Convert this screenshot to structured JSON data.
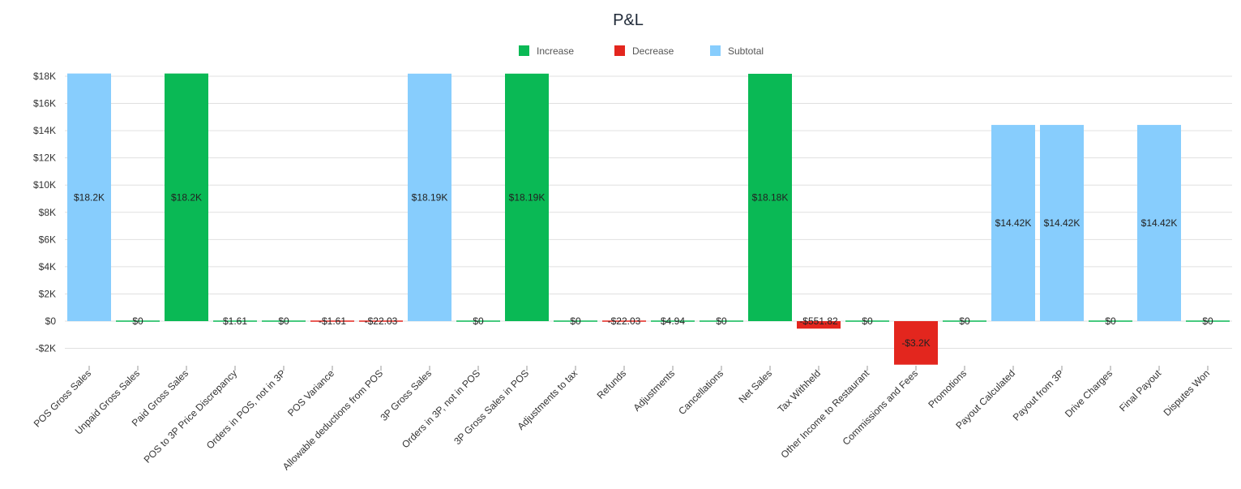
{
  "chart_data": {
    "type": "bar",
    "subtype": "waterfall",
    "title": "P&L",
    "legend": {
      "placement": "top-center",
      "items": [
        {
          "name": "Increase",
          "color": "#0ab955"
        },
        {
          "name": "Decrease",
          "color": "#e3261e"
        },
        {
          "name": "Subtotal",
          "color": "#87cdfd"
        }
      ]
    },
    "yaxis": {
      "range": [
        -3200,
        18200
      ],
      "ticks": [
        -2000,
        0,
        2000,
        4000,
        6000,
        8000,
        10000,
        12000,
        14000,
        16000,
        18000
      ],
      "tick_labels": [
        "-$2K",
        "$0",
        "$2K",
        "$4K",
        "$6K",
        "$8K",
        "$10K",
        "$12K",
        "$14K",
        "$16K",
        "$18K"
      ],
      "grid": true
    },
    "categories": [
      "POS Gross Sales",
      "Unpaid Gross Sales",
      "Paid Gross Sales",
      "POS to 3P Price Discrepancy",
      "Orders in POS, not in 3P",
      "POS Variance",
      "Allowable deductions from POS",
      "3P Gross Sales",
      "Orders in 3P, not in POS",
      "3P Gross Sales in POS",
      "Adjustments to tax",
      "Refunds",
      "Adjustments",
      "Cancellations",
      "Net Sales",
      "Tax Withheld",
      "Other Income to Restaurant",
      "Commissions and Fees",
      "Promotions",
      "Payout Calculated",
      "Payout from 3P",
      "Drive Charges",
      "Final Payout",
      "Disputes Won"
    ],
    "values": [
      18200,
      0,
      18200,
      1.61,
      0,
      -1.61,
      -22.03,
      18190,
      0,
      18190,
      0,
      -22.03,
      4.94,
      0,
      18180,
      -551.82,
      0,
      -3200,
      0,
      14420,
      14420,
      0,
      14420,
      0
    ],
    "bar_kinds": [
      "subtotal",
      "increase",
      "increase",
      "increase",
      "increase",
      "decrease",
      "decrease",
      "subtotal",
      "increase",
      "increase",
      "increase",
      "decrease",
      "increase",
      "increase",
      "increase",
      "decrease",
      "increase",
      "decrease",
      "increase",
      "subtotal",
      "subtotal",
      "increase",
      "subtotal",
      "increase"
    ],
    "data_labels": [
      "$18.2K",
      "$0",
      "$18.2K",
      "$1.61",
      "$0",
      "-$1.61",
      "-$22.03",
      "$18.19K",
      "$0",
      "$18.19K",
      "$0",
      "-$22.03",
      "$4.94",
      "$0",
      "$18.18K",
      "-$551.82",
      "$0",
      "-$3.2K",
      "$0",
      "$14.42K",
      "$14.42K",
      "$0",
      "$14.42K",
      "$0"
    ]
  }
}
